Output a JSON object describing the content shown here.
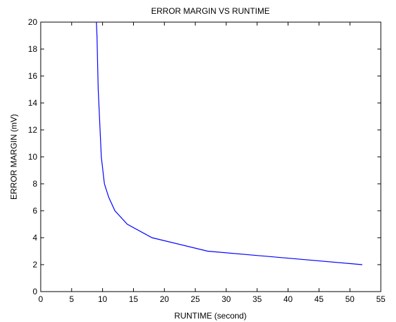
{
  "chart_data": {
    "type": "line",
    "title": "ERROR MARGIN VS RUNTIME",
    "xlabel": "RUNTIME (second)",
    "ylabel": "ERROR MARGIN (mV)",
    "xlim": [
      0,
      55
    ],
    "ylim": [
      0,
      20
    ],
    "xticks": [
      0,
      5,
      10,
      15,
      20,
      25,
      30,
      35,
      40,
      45,
      50,
      55
    ],
    "yticks": [
      0,
      2,
      4,
      6,
      8,
      10,
      12,
      14,
      16,
      18,
      20
    ],
    "grid": false,
    "series": [
      {
        "color": "#0000ff",
        "x": [
          52,
          27,
          18,
          14,
          12,
          11,
          10.3,
          9.8,
          9.6,
          9.4,
          9.3,
          9.2,
          9.1,
          9.0
        ],
        "y": [
          2,
          3,
          4,
          5,
          6,
          7,
          8,
          10,
          12,
          14,
          15,
          17,
          19,
          20
        ]
      }
    ]
  }
}
